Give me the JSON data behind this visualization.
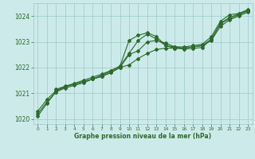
{
  "xlabel": "Graphe pression niveau de la mer (hPa)",
  "ylim": [
    1019.8,
    1024.5
  ],
  "xlim": [
    -0.5,
    23.5
  ],
  "yticks": [
    1020,
    1021,
    1022,
    1023,
    1024
  ],
  "xticks": [
    0,
    1,
    2,
    3,
    4,
    5,
    6,
    7,
    8,
    9,
    10,
    11,
    12,
    13,
    14,
    15,
    16,
    17,
    18,
    19,
    20,
    21,
    22,
    23
  ],
  "background_color": "#cdeaea",
  "grid_color": "#9dc8c8",
  "line_color": "#2d6a2d",
  "line1_x": [
    0,
    1,
    2,
    3,
    4,
    5,
    6,
    7,
    8,
    9,
    10,
    11,
    12,
    13,
    14,
    15,
    16,
    17,
    18,
    19,
    20,
    21,
    22,
    23
  ],
  "line1_y": [
    1020.3,
    1020.75,
    1021.1,
    1021.25,
    1021.35,
    1021.45,
    1021.55,
    1021.7,
    1021.85,
    1022.05,
    1023.05,
    1023.25,
    1023.35,
    1023.2,
    1022.85,
    1022.8,
    1022.8,
    1022.85,
    1022.9,
    1023.2,
    1023.8,
    1024.05,
    1024.1,
    1024.25
  ],
  "line2_x": [
    0,
    1,
    2,
    3,
    4,
    5,
    6,
    7,
    8,
    9,
    10,
    11,
    12,
    13,
    14,
    15,
    16,
    17,
    18,
    19,
    20,
    21,
    22,
    23
  ],
  "line2_y": [
    1020.2,
    1020.65,
    1021.05,
    1021.25,
    1021.35,
    1021.45,
    1021.55,
    1021.65,
    1021.8,
    1022.0,
    1022.1,
    1022.35,
    1022.55,
    1022.7,
    1022.75,
    1022.75,
    1022.75,
    1022.8,
    1022.85,
    1023.1,
    1023.7,
    1023.9,
    1024.05,
    1024.2
  ],
  "line3_x": [
    0,
    1,
    2,
    3,
    4,
    5,
    6,
    7,
    8,
    9,
    10,
    11,
    12,
    13,
    14,
    15,
    16,
    17,
    18,
    19,
    20,
    21,
    22,
    23
  ],
  "line3_y": [
    1020.1,
    1020.6,
    1021.05,
    1021.2,
    1021.3,
    1021.4,
    1021.55,
    1021.65,
    1021.8,
    1022.0,
    1022.5,
    1022.65,
    1023.0,
    1023.05,
    1022.95,
    1022.8,
    1022.75,
    1022.8,
    1022.85,
    1023.05,
    1023.6,
    1023.85,
    1024.0,
    1024.15
  ],
  "line4_x": [
    2,
    3,
    4,
    5,
    6,
    7,
    8,
    9,
    10,
    11,
    12,
    13,
    14,
    15,
    16,
    17,
    18,
    19,
    20,
    21,
    22,
    23
  ],
  "line4_y": [
    1021.15,
    1021.27,
    1021.38,
    1021.5,
    1021.62,
    1021.74,
    1021.88,
    1022.05,
    1022.55,
    1023.05,
    1023.3,
    1023.1,
    1022.85,
    1022.75,
    1022.72,
    1022.74,
    1022.78,
    1023.1,
    1023.72,
    1023.95,
    1024.08,
    1024.22
  ]
}
